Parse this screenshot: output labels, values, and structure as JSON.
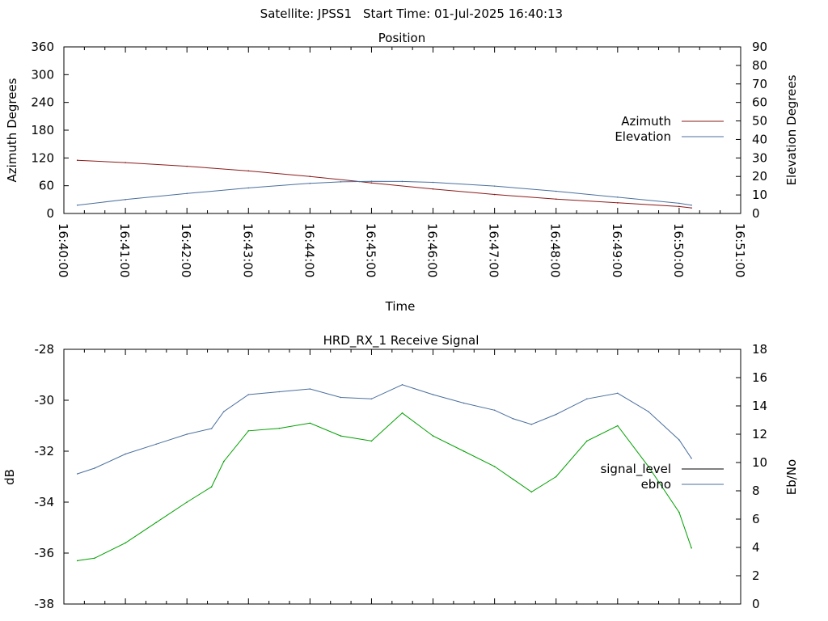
{
  "header": {
    "satellite_text": "Satellite: JPSS1",
    "start_time_text": "Start Time: 01-Jul-2025 16:40:13"
  },
  "chart_data": [
    {
      "type": "line",
      "title": "Position",
      "xlabel": "Time",
      "ylabel": "Azimuth Degrees",
      "y2label": "Elevation Degrees",
      "x_ticks": [
        "16:40:00",
        "16:41:00",
        "16:42:00",
        "16:43:00",
        "16:44:00",
        "16:45:00",
        "16:46:00",
        "16:47:00",
        "16:48:00",
        "16:49:00",
        "16:50:00",
        "16:51:00"
      ],
      "xlim_minutes": [
        0,
        11
      ],
      "ylim": [
        0,
        360
      ],
      "y_ticks": [
        0,
        60,
        120,
        180,
        240,
        300,
        360
      ],
      "y2lim": [
        0,
        90
      ],
      "y2_ticks": [
        0,
        10,
        20,
        30,
        40,
        50,
        60,
        70,
        80,
        90
      ],
      "legend_position": "right",
      "series": [
        {
          "name": "Azimuth",
          "axis": "y",
          "color": "#8b1a1a",
          "x_minutes": [
            0.22,
            1.0,
            2.0,
            3.0,
            4.0,
            4.8,
            5.0,
            6.0,
            7.0,
            8.0,
            9.0,
            10.0,
            10.2
          ],
          "values": [
            115,
            110,
            102,
            92,
            80,
            69,
            66,
            53,
            41,
            31,
            23,
            15,
            12
          ]
        },
        {
          "name": "Elevation",
          "axis": "y2",
          "color": "#4a6f9e",
          "x_minutes": [
            0.22,
            1.0,
            2.0,
            3.0,
            4.0,
            4.5,
            5.0,
            5.5,
            6.0,
            7.0,
            8.0,
            9.0,
            10.0,
            10.2
          ],
          "values": [
            4.5,
            7.5,
            10.8,
            13.8,
            16.3,
            17.1,
            17.4,
            17.3,
            16.8,
            14.8,
            12.0,
            8.8,
            5.5,
            4.5
          ]
        }
      ]
    },
    {
      "type": "line",
      "title": "HRD_RX_1 Receive Signal",
      "ylabel": "dB",
      "y2label": "Eb/No",
      "xlim_minutes": [
        0,
        11
      ],
      "ylim": [
        -38,
        -28
      ],
      "y_ticks": [
        -38,
        -36,
        -34,
        -32,
        -30,
        -28
      ],
      "y2lim": [
        0,
        18
      ],
      "y2_ticks": [
        0,
        2,
        4,
        6,
        8,
        10,
        12,
        14,
        16,
        18
      ],
      "legend_position": "right",
      "series": [
        {
          "name": "signal_level",
          "axis": "y",
          "color": "#00a000",
          "x_minutes": [
            0.22,
            0.5,
            1.0,
            1.5,
            2.0,
            2.4,
            2.6,
            3.0,
            3.5,
            4.0,
            4.5,
            5.0,
            5.5,
            6.0,
            6.5,
            7.0,
            7.3,
            7.6,
            8.0,
            8.5,
            9.0,
            9.5,
            10.0,
            10.2
          ],
          "values": [
            -36.3,
            -36.2,
            -35.6,
            -34.8,
            -34.0,
            -33.4,
            -32.4,
            -31.2,
            -31.1,
            -30.9,
            -31.4,
            -31.6,
            -30.5,
            -31.4,
            -32.0,
            -32.6,
            -33.1,
            -33.6,
            -33.0,
            -31.6,
            -31.0,
            -32.6,
            -34.4,
            -35.8
          ]
        },
        {
          "name": "ebno",
          "axis": "y2",
          "color": "#4a6f9e",
          "x_minutes": [
            0.22,
            0.5,
            1.0,
            1.5,
            2.0,
            2.4,
            2.6,
            3.0,
            3.5,
            4.0,
            4.5,
            5.0,
            5.5,
            6.0,
            6.5,
            7.0,
            7.3,
            7.6,
            8.0,
            8.5,
            9.0,
            9.5,
            10.0,
            10.2
          ],
          "values": [
            9.2,
            9.6,
            10.6,
            11.3,
            12.0,
            12.4,
            13.6,
            14.8,
            15.0,
            15.2,
            14.6,
            14.5,
            15.5,
            14.8,
            14.2,
            13.7,
            13.1,
            12.7,
            13.4,
            14.5,
            14.9,
            13.6,
            11.6,
            10.3
          ]
        }
      ]
    }
  ]
}
